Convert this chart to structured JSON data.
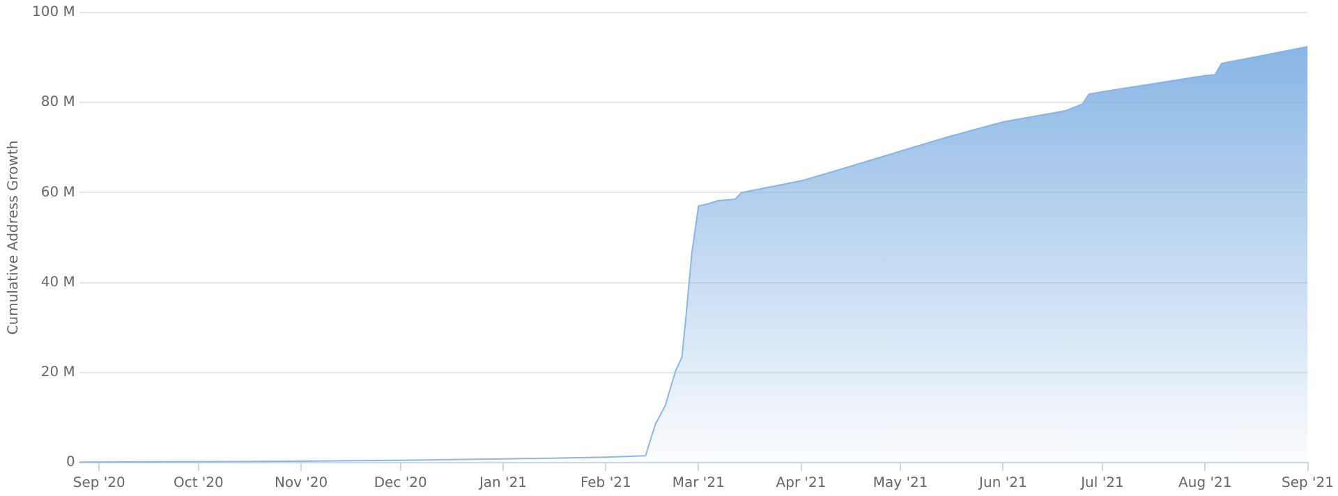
{
  "chart_data": {
    "type": "area",
    "ylabel": "Cumulative Address Growth",
    "x": [
      "2020-08-26",
      "2020-10-01",
      "2020-11-01",
      "2020-12-01",
      "2021-01-01",
      "2021-02-01",
      "2021-02-13",
      "2021-02-16",
      "2021-02-19",
      "2021-02-22",
      "2021-02-24",
      "2021-02-25",
      "2021-02-27",
      "2021-03-01",
      "2021-03-04",
      "2021-03-07",
      "2021-03-12",
      "2021-03-14",
      "2021-04-01",
      "2021-04-10",
      "2021-05-01",
      "2021-05-15",
      "2021-06-01",
      "2021-06-20",
      "2021-06-25",
      "2021-06-27",
      "2021-07-01",
      "2021-08-01",
      "2021-08-04",
      "2021-08-06",
      "2021-09-01"
    ],
    "series": [
      {
        "color": "#7fb0e3",
        "values": [
          0.1,
          0.2,
          0.3,
          0.5,
          0.8,
          1.2,
          1.5,
          8.5,
          12.7,
          20.2,
          23.4,
          30.7,
          46.5,
          57,
          57.5,
          58.2,
          58.5,
          60,
          62.6,
          64.5,
          69.2,
          72.3,
          75.7,
          78.2,
          79.7,
          81.9,
          82.4,
          86,
          86.2,
          88.7,
          92.4
        ]
      }
    ],
    "xlim": [
      "2020-08-26",
      "2021-09-01"
    ],
    "xticks": [
      {
        "value": "2020-09-01",
        "label": "Sep '20"
      },
      {
        "value": "2020-10-01",
        "label": "Oct '20"
      },
      {
        "value": "2020-11-01",
        "label": "Nov '20"
      },
      {
        "value": "2020-12-01",
        "label": "Dec '20"
      },
      {
        "value": "2021-01-01",
        "label": "Jan '21"
      },
      {
        "value": "2021-02-01",
        "label": "Feb '21"
      },
      {
        "value": "2021-03-01",
        "label": "Mar '21"
      },
      {
        "value": "2021-04-01",
        "label": "Apr '21"
      },
      {
        "value": "2021-05-01",
        "label": "May '21"
      },
      {
        "value": "2021-06-01",
        "label": "Jun '21"
      },
      {
        "value": "2021-07-01",
        "label": "Jul '21"
      },
      {
        "value": "2021-08-01",
        "label": "Aug '21"
      },
      {
        "value": "2021-09-01",
        "label": "Sep '21"
      }
    ],
    "ylim": [
      0,
      100
    ],
    "yticks": [
      0,
      {
        "value": 20,
        "label": "20 M"
      },
      {
        "value": 40,
        "label": "40 M"
      },
      {
        "value": 60,
        "label": "60 M"
      },
      {
        "value": 80,
        "label": "80 M"
      },
      {
        "value": 100,
        "label": "100 M"
      }
    ],
    "grid": "y",
    "legend": false,
    "marker": "none"
  }
}
